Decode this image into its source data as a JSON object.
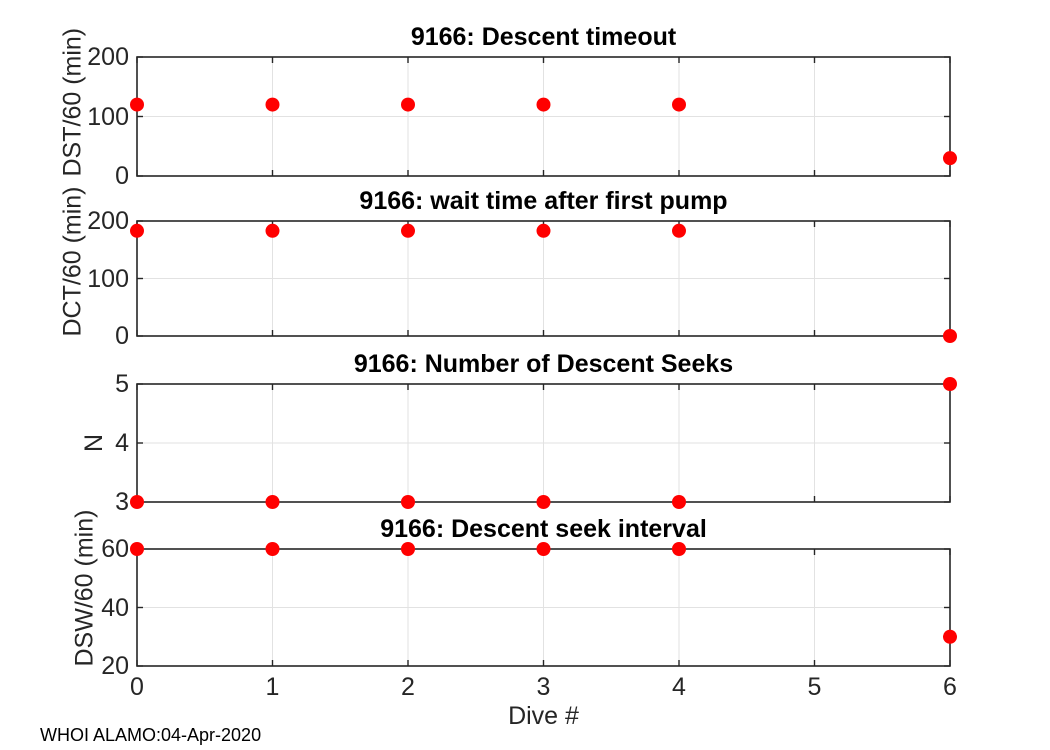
{
  "figure": {
    "xlabel": "Dive #",
    "footer": "WHOI ALAMO:04-Apr-2020",
    "background_color": "#ffffff",
    "axis_color": "#262626",
    "grid_color": "#e2e2e2",
    "marker_color": "#ff0000",
    "marker_shape": "filled-circle"
  },
  "chart_data": [
    {
      "type": "scatter",
      "title": "9166: Descent timeout",
      "ylabel": "DST/60 (min)",
      "x": [
        0,
        1,
        2,
        3,
        4,
        6
      ],
      "y": [
        120,
        120,
        120,
        120,
        120,
        30
      ],
      "xlim": [
        0,
        6
      ],
      "ylim": [
        0,
        200
      ],
      "xticks": [
        0,
        1,
        2,
        3,
        4,
        5,
        6
      ],
      "yticks": [
        0,
        100,
        200
      ],
      "grid": true,
      "x_tick_labels_visible": false
    },
    {
      "type": "scatter",
      "title": "9166: wait time after first pump",
      "ylabel": "DCT/60 (min)",
      "x": [
        0,
        1,
        2,
        3,
        4,
        6
      ],
      "y": [
        183,
        183,
        183,
        183,
        183,
        0
      ],
      "xlim": [
        0,
        6
      ],
      "ylim": [
        0,
        200
      ],
      "xticks": [
        0,
        1,
        2,
        3,
        4,
        5,
        6
      ],
      "yticks": [
        0,
        100,
        200
      ],
      "grid": true,
      "x_tick_labels_visible": false
    },
    {
      "type": "scatter",
      "title": "9166: Number of Descent Seeks",
      "ylabel": "N",
      "x": [
        0,
        1,
        2,
        3,
        4,
        6
      ],
      "y": [
        3,
        3,
        3,
        3,
        3,
        5
      ],
      "xlim": [
        0,
        6
      ],
      "ylim": [
        3,
        5
      ],
      "xticks": [
        0,
        1,
        2,
        3,
        4,
        5,
        6
      ],
      "yticks": [
        3,
        4,
        5
      ],
      "grid": true,
      "x_tick_labels_visible": false
    },
    {
      "type": "scatter",
      "title": "9166: Descent seek interval",
      "ylabel": "DSW/60 (min)",
      "x": [
        0,
        1,
        2,
        3,
        4,
        6
      ],
      "y": [
        60,
        60,
        60,
        60,
        60,
        30
      ],
      "xlim": [
        0,
        6
      ],
      "ylim": [
        20,
        60
      ],
      "xticks": [
        0,
        1,
        2,
        3,
        4,
        5,
        6
      ],
      "yticks": [
        20,
        40,
        60
      ],
      "grid": true,
      "x_tick_labels_visible": true
    }
  ]
}
